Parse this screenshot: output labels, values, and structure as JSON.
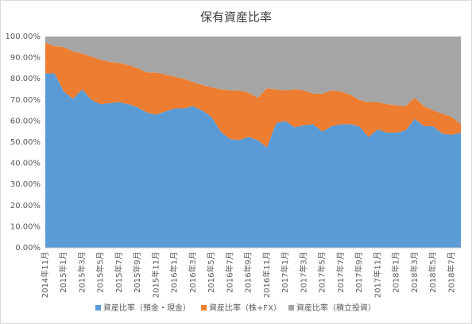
{
  "chart_data": {
    "type": "stacked_area",
    "title": "保有資産比率",
    "categories": [
      "2014年11月",
      null,
      "2015年1月",
      null,
      "2015年3月",
      null,
      "2015年5月",
      null,
      "2015年7月",
      null,
      "2015年9月",
      null,
      "2015年11月",
      null,
      "2016年1月",
      null,
      "2016年3月",
      null,
      "2016年5月",
      null,
      "2016年7月",
      null,
      "2016年9月",
      null,
      "2016年11月",
      null,
      "2017年1月",
      null,
      "2017年3月",
      null,
      "2017年5月",
      null,
      "2017年7月",
      null,
      "2017年9月",
      null,
      "2017年11月",
      null,
      "2018年1月",
      null,
      "2018年3月",
      null,
      "2018年5月",
      null,
      "2018年7月",
      null
    ],
    "series": [
      {
        "name": "資産比率（預金・現金）",
        "color": "#5b9bd5",
        "values": [
          82.5,
          82.5,
          74,
          70.5,
          75,
          70,
          68,
          68.5,
          69,
          68,
          66.5,
          64,
          63,
          64.5,
          66,
          66,
          67,
          65,
          62,
          55,
          51.5,
          51,
          52.5,
          51,
          47.5,
          59,
          60,
          57,
          58,
          58.5,
          55,
          57.5,
          58.5,
          58.5,
          57.5,
          52.5,
          56,
          54.5,
          54.5,
          55.5,
          61,
          57.5,
          57.5,
          54,
          53.5,
          54.5
        ]
      },
      {
        "name": "資産比率（株+FX）",
        "color": "#ed7d31",
        "values": [
          14.5,
          13,
          21,
          22.5,
          17,
          20.5,
          21,
          19.5,
          18.5,
          18.5,
          18.5,
          19,
          20,
          17.5,
          15,
          14,
          11.5,
          12,
          14,
          20,
          23,
          23.5,
          21,
          20,
          28,
          16,
          14.5,
          18,
          16.5,
          14.5,
          18,
          17,
          15.5,
          14,
          12.5,
          16.5,
          13,
          13.5,
          13,
          11.5,
          10,
          9.5,
          7.5,
          9.5,
          8.5,
          4
        ]
      },
      {
        "name": "資産比率（積立投資）",
        "color": "#a5a5a5",
        "values": [
          3,
          4.5,
          5,
          7,
          8,
          9.5,
          11,
          12,
          12.5,
          13.5,
          15,
          17,
          17,
          18,
          19,
          20,
          21.5,
          23,
          24,
          25,
          25.5,
          25.5,
          26.5,
          29,
          24.5,
          25,
          25.5,
          25,
          25.5,
          27,
          27,
          25.5,
          26,
          27.5,
          30,
          31,
          31,
          32,
          32.5,
          33,
          29,
          33,
          35,
          36.5,
          38,
          41.5
        ]
      }
    ],
    "ylim": [
      0,
      100
    ],
    "yticks": [
      {
        "value": 0,
        "label": "0.00%"
      },
      {
        "value": 10,
        "label": "10.00%"
      },
      {
        "value": 20,
        "label": "20.00%"
      },
      {
        "value": 30,
        "label": "30.00%"
      },
      {
        "value": 40,
        "label": "40.00%"
      },
      {
        "value": 50,
        "label": "50.00%"
      },
      {
        "value": 60,
        "label": "60.00%"
      },
      {
        "value": 70,
        "label": "70.00%"
      },
      {
        "value": 80,
        "label": "80.00%"
      },
      {
        "value": 90,
        "label": "90.00%"
      },
      {
        "value": 100,
        "label": "100.00%"
      }
    ],
    "grid": false,
    "legend": "bottom"
  }
}
